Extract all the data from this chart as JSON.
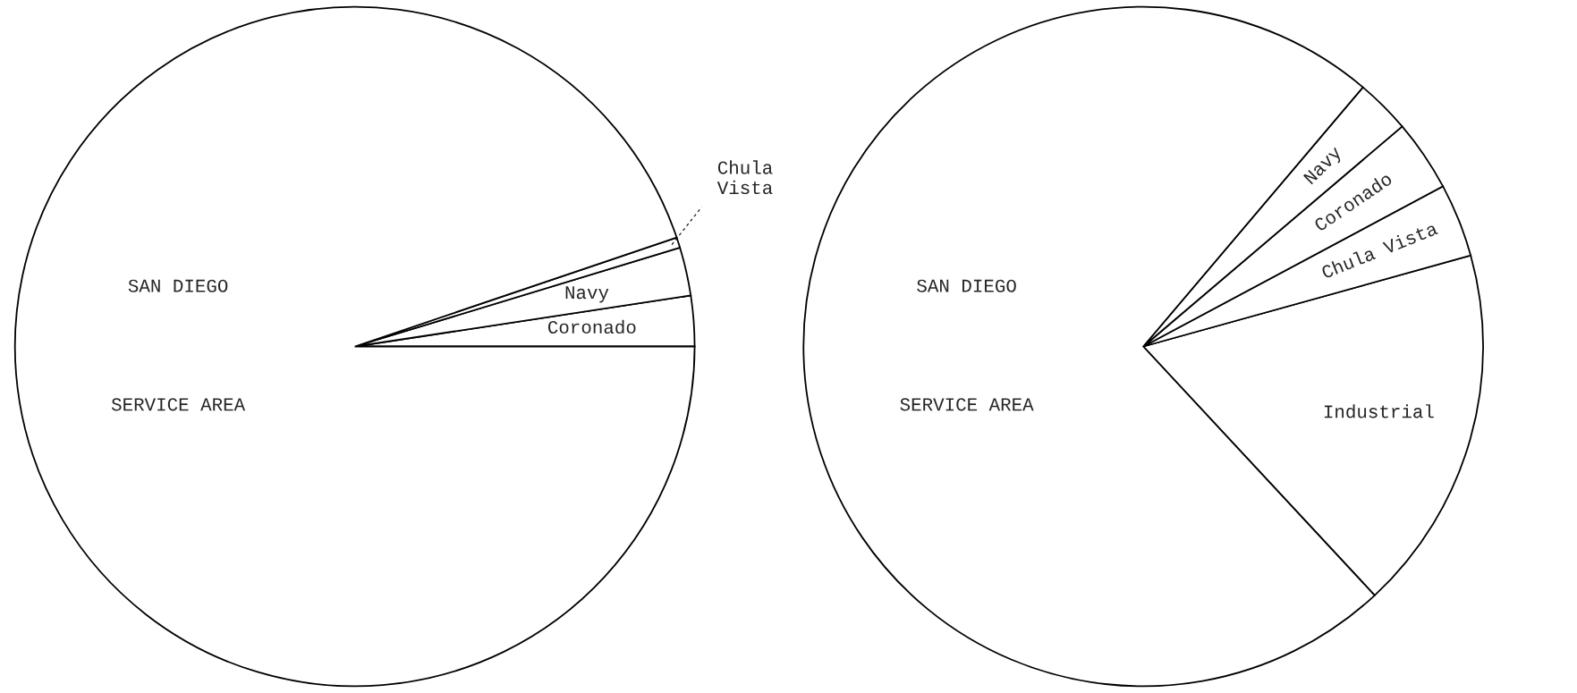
{
  "chart_data": [
    {
      "type": "pie",
      "categories": [
        "Coronado",
        "Navy",
        "Chula\nVista",
        "SAN DIEGO\nSERVICE AREA"
      ],
      "values": [
        2.4,
        2.3,
        0.5,
        94.8
      ],
      "colors": [
        "#ffffff",
        "#ffffff",
        "#ffffff",
        "#ffffff"
      ]
    },
    {
      "type": "pie",
      "categories": [
        "Industrial",
        "Chula Vista",
        "Coronado",
        "Navy",
        "SAN DIEGO\nSERVICE AREA"
      ],
      "values": [
        17.4,
        3.5,
        3.4,
        2.6,
        73.1
      ],
      "colors": [
        "#ffffff",
        "#ffffff",
        "#ffffff",
        "#ffffff",
        "#ffffff"
      ]
    }
  ]
}
